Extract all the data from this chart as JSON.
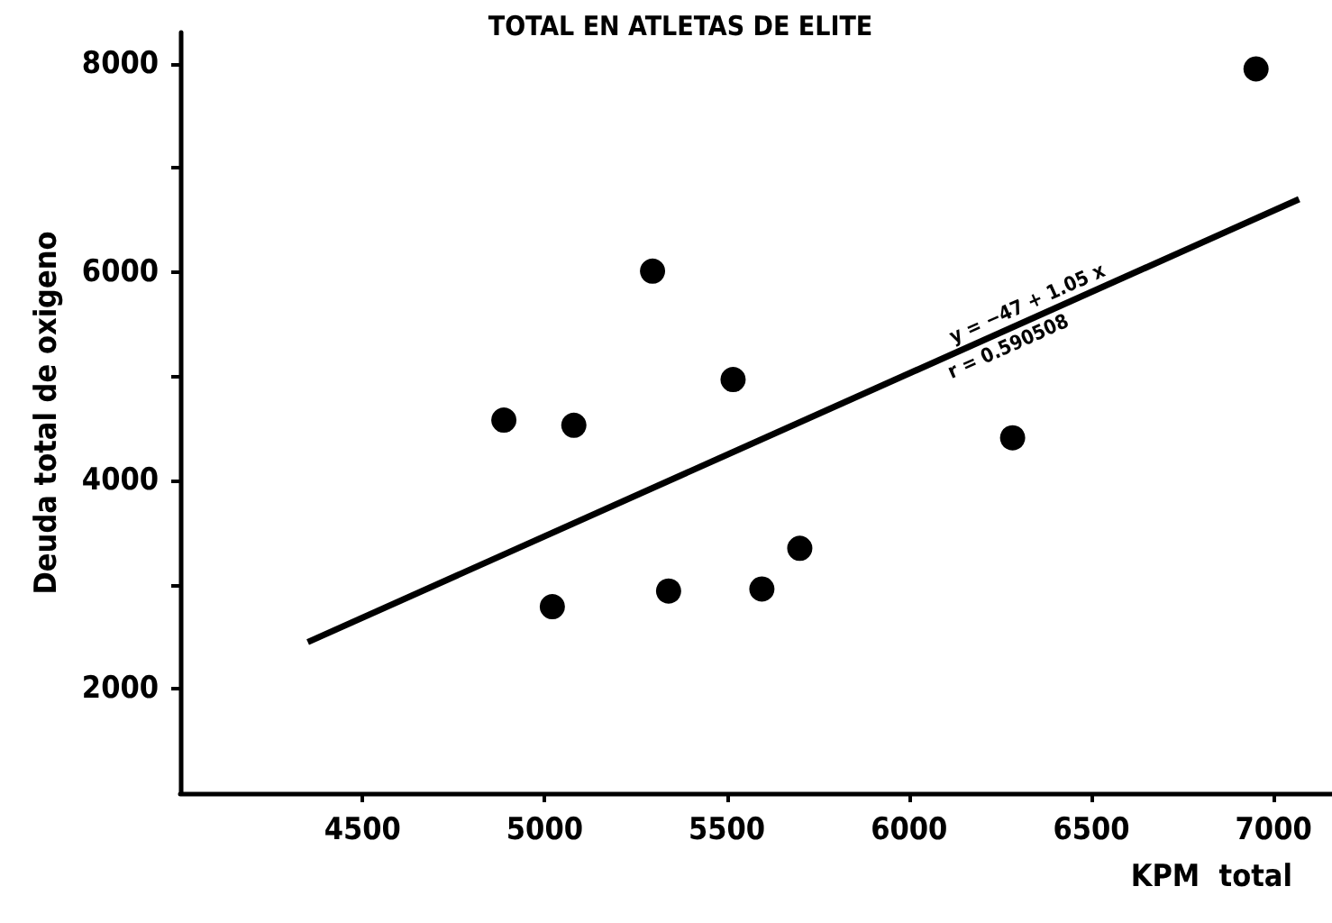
{
  "chart_data": {
    "type": "scatter",
    "title": "TOTAL EN ATLETAS DE ELITE",
    "xlabel": "KPM  total",
    "ylabel": "Deuda total de oxigeno",
    "x": [
      4888,
      5021,
      5080,
      5296,
      5340,
      5517,
      5596,
      5700,
      6284,
      6952
    ],
    "values": [
      4580,
      2790,
      4530,
      6010,
      2940,
      4970,
      2960,
      3350,
      4410,
      7950
    ],
    "color": "#000000",
    "marker": "circle",
    "grid": false,
    "series": [
      {
        "type": "line",
        "x": [
          4350,
          7070
        ],
        "values": [
          2450,
          6700
        ],
        "color": "#000000",
        "line_style": "solid",
        "marker": "none"
      }
    ],
    "annotations": [
      {
        "text": "y = −47 + 1.05 x",
        "x": 6300,
        "y": 5508
      },
      {
        "text": "r = 0.590508",
        "x": 6300,
        "y": 5508
      }
    ],
    "xlim": [
      4000,
      7200
    ],
    "xticks": [
      4500,
      5000,
      5500,
      6000,
      6500,
      7000
    ],
    "ylim": [
      1000,
      8300
    ],
    "yticks": [
      2000,
      {
        "value": 3000,
        "label": null
      },
      4000,
      {
        "value": 5000,
        "label": null
      },
      6000,
      {
        "value": 7000,
        "label": null
      },
      8000
    ]
  }
}
